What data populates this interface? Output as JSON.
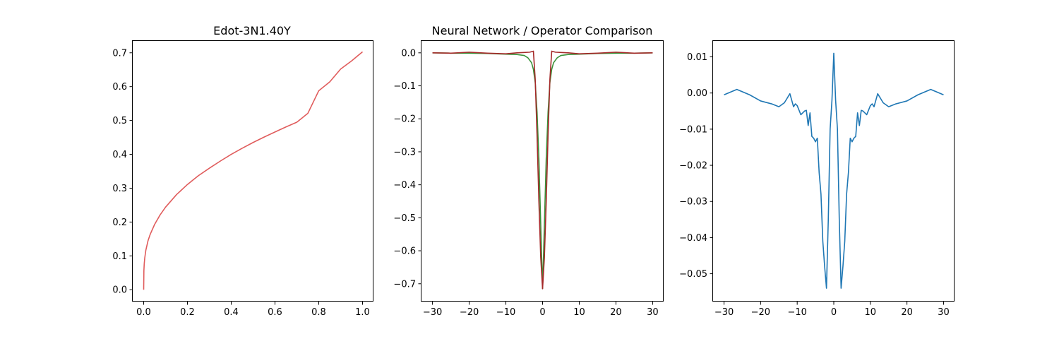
{
  "chart_data": [
    {
      "type": "line",
      "title": "Edot-3N1.40Y",
      "xlabel": "",
      "ylabel": "",
      "xlim": [
        -0.05,
        1.05
      ],
      "ylim": [
        -0.035,
        0.735
      ],
      "xticks": [
        0.0,
        0.2,
        0.4,
        0.6,
        0.8,
        1.0
      ],
      "xtick_labels": [
        "0.0",
        "0.2",
        "0.4",
        "0.6",
        "0.8",
        "1.0"
      ],
      "yticks": [
        0.0,
        0.1,
        0.2,
        0.3,
        0.4,
        0.5,
        0.6,
        0.7
      ],
      "ytick_labels": [
        "0.0",
        "0.1",
        "0.2",
        "0.3",
        "0.4",
        "0.5",
        "0.6",
        "0.7"
      ],
      "grid": false,
      "series": [
        {
          "color": "#e05c5c",
          "x": [
            0.0,
            0.001,
            0.0025,
            0.005,
            0.01,
            0.02,
            0.03,
            0.05,
            0.075,
            0.1,
            0.15,
            0.2,
            0.25,
            0.3,
            0.35,
            0.4,
            0.45,
            0.5,
            0.55,
            0.6,
            0.65,
            0.7,
            0.75,
            0.8,
            0.85,
            0.9,
            0.95,
            1.0
          ],
          "values": [
            0.0,
            0.056,
            0.076,
            0.094,
            0.117,
            0.145,
            0.164,
            0.193,
            0.221,
            0.244,
            0.281,
            0.311,
            0.337,
            0.359,
            0.38,
            0.4,
            0.418,
            0.435,
            0.451,
            0.466,
            0.481,
            0.495,
            0.521,
            0.588,
            0.614,
            0.652,
            0.676,
            0.703
          ]
        }
      ]
    },
    {
      "type": "line",
      "title": "Neural Network / Operator Comparison",
      "xlabel": "",
      "ylabel": "",
      "xlim": [
        -33,
        33
      ],
      "ylim": [
        -0.754,
        0.036
      ],
      "xticks": [
        -30,
        -20,
        -10,
        0,
        10,
        20,
        30
      ],
      "xtick_labels": [
        "−30",
        "−20",
        "−10",
        "0",
        "10",
        "20",
        "30"
      ],
      "yticks": [
        0.0,
        -0.1,
        -0.2,
        -0.3,
        -0.4,
        -0.5,
        -0.6,
        -0.7
      ],
      "ytick_labels": [
        "0.0",
        "−0.1",
        "−0.2",
        "−0.3",
        "−0.4",
        "−0.5",
        "−0.6",
        "−0.7"
      ],
      "grid": false,
      "series": [
        {
          "color": "#3a923a",
          "x": [
            -30,
            -25,
            -20,
            -15,
            -10,
            -7,
            -5,
            -4,
            -3,
            -2.5,
            -2,
            -1.5,
            -1,
            -0.5,
            0,
            0.5,
            1,
            1.5,
            2,
            2.5,
            3,
            4,
            5,
            7,
            10,
            15,
            20,
            25,
            30
          ],
          "values": [
            0.0,
            -0.001,
            -0.001,
            -0.002,
            -0.004,
            -0.005,
            -0.008,
            -0.015,
            -0.03,
            -0.05,
            -0.09,
            -0.18,
            -0.32,
            -0.52,
            -0.715,
            -0.52,
            -0.32,
            -0.18,
            -0.09,
            -0.05,
            -0.03,
            -0.015,
            -0.008,
            -0.005,
            -0.004,
            -0.002,
            -0.001,
            -0.001,
            0.0
          ]
        },
        {
          "color": "#a52a2a",
          "x": [
            -30,
            -25,
            -20,
            -15,
            -10,
            -7,
            -5,
            -3.5,
            -2.5,
            -2,
            -1.5,
            -1,
            -0.5,
            0,
            0.5,
            1,
            1.5,
            2,
            2.5,
            3.5,
            5,
            7,
            10,
            15,
            20,
            25,
            30
          ],
          "values": [
            0.0,
            -0.001,
            0.002,
            -0.001,
            -0.003,
            0.0,
            0.001,
            0.002,
            0.005,
            -0.08,
            -0.25,
            -0.45,
            -0.62,
            -0.715,
            -0.62,
            -0.45,
            -0.25,
            -0.08,
            0.005,
            0.002,
            0.001,
            0.0,
            -0.003,
            -0.001,
            0.002,
            -0.001,
            0.0
          ]
        }
      ]
    },
    {
      "type": "line",
      "title": "",
      "xlabel": "",
      "ylabel": "",
      "xlim": [
        -33,
        33
      ],
      "ylim": [
        -0.0577,
        0.0144
      ],
      "xticks": [
        -30,
        -20,
        -10,
        0,
        10,
        20,
        30
      ],
      "xtick_labels": [
        "−30",
        "−20",
        "−10",
        "0",
        "10",
        "20",
        "30"
      ],
      "yticks": [
        0.01,
        0.0,
        -0.01,
        -0.02,
        -0.03,
        -0.04,
        -0.05
      ],
      "ytick_labels": [
        "0.01",
        "0.00",
        "−0.01",
        "−0.02",
        "−0.03",
        "−0.04",
        "−0.05"
      ],
      "grid": false,
      "series": [
        {
          "color": "#1f77b4",
          "x": [
            -30,
            -26.5,
            -23,
            -20,
            -17,
            -15,
            -13.5,
            -12,
            -11,
            -10.5,
            -10,
            -9,
            -8,
            -7.5,
            -7,
            -6.5,
            -6,
            -5.5,
            -5,
            -4.5,
            -4,
            -3.5,
            -3,
            -2.5,
            -2,
            -1.5,
            -1,
            -0.5,
            0,
            0.5,
            1,
            1.5,
            2,
            2.5,
            3,
            3.5,
            4,
            4.5,
            5,
            5.5,
            6,
            6.5,
            7,
            7.5,
            8,
            9,
            10,
            10.5,
            11,
            12,
            13.5,
            15,
            17,
            20,
            23,
            26.5,
            30
          ],
          "values": [
            -0.0005,
            0.001,
            -0.0005,
            -0.0022,
            -0.003,
            -0.0038,
            -0.0027,
            -0.0002,
            -0.0038,
            -0.003,
            -0.0035,
            -0.006,
            -0.005,
            -0.0048,
            -0.009,
            -0.0055,
            -0.012,
            -0.0125,
            -0.0135,
            -0.0125,
            -0.022,
            -0.028,
            -0.041,
            -0.048,
            -0.054,
            -0.035,
            -0.01,
            -0.002,
            0.011,
            -0.002,
            -0.01,
            -0.035,
            -0.054,
            -0.048,
            -0.041,
            -0.028,
            -0.022,
            -0.0125,
            -0.0135,
            -0.0125,
            -0.012,
            -0.0055,
            -0.009,
            -0.0048,
            -0.005,
            -0.006,
            -0.0035,
            -0.003,
            -0.0038,
            -0.0002,
            -0.0027,
            -0.0038,
            -0.003,
            -0.0022,
            -0.0005,
            0.001,
            -0.0005
          ]
        }
      ]
    }
  ]
}
